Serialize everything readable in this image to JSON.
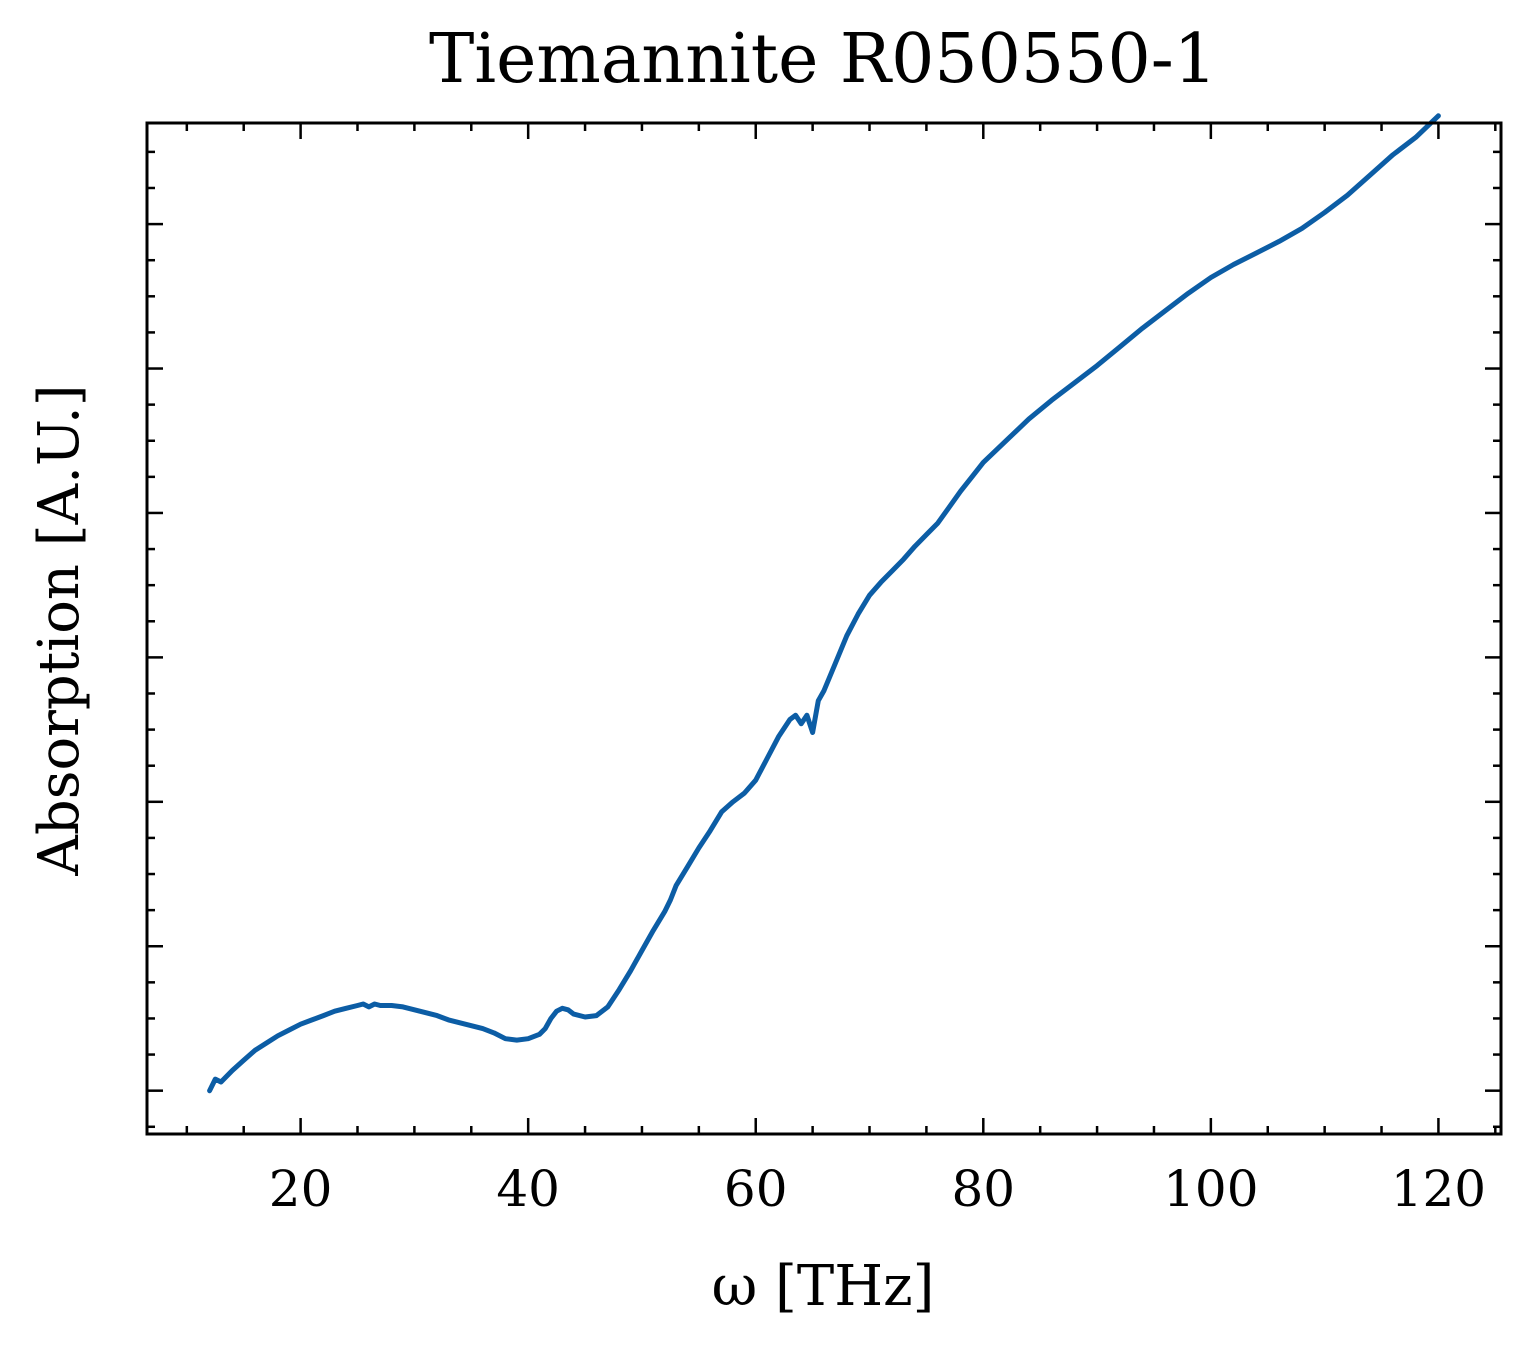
{
  "chart_data": {
    "type": "line",
    "title": "Tiemannite R050550-1",
    "xlabel": "ω [THz]",
    "ylabel": "Absorption [A.U.]",
    "xlim": [
      6.5,
      125.5
    ],
    "ylim": [
      -0.03,
      0.67
    ],
    "x_ticks": [
      20,
      40,
      60,
      80,
      100,
      120
    ],
    "x_tick_labels": [
      "20",
      "40",
      "60",
      "80",
      "100",
      "120"
    ],
    "x_minor_step": 5,
    "y_ticks": [
      0.0,
      0.1,
      0.2,
      0.3,
      0.4,
      0.5,
      0.6
    ],
    "y_tick_labels": [
      "",
      "",
      "",
      "",
      "",
      "",
      ""
    ],
    "y_minor_step": 0.025,
    "grid": false,
    "legend": "none",
    "series": [
      {
        "color": "#0c5da5",
        "x": [
          12.0,
          12.5,
          13.0,
          14.0,
          15.0,
          16.0,
          17.0,
          18.0,
          19.0,
          20.0,
          21.0,
          22.0,
          23.0,
          24.0,
          25.0,
          25.5,
          26.0,
          26.5,
          27.0,
          28.0,
          29.0,
          30.0,
          31.0,
          32.0,
          33.0,
          34.0,
          35.0,
          36.0,
          37.0,
          38.0,
          39.0,
          40.0,
          41.0,
          41.5,
          42.0,
          42.5,
          43.0,
          43.5,
          44.0,
          45.0,
          46.0,
          47.0,
          48.0,
          49.0,
          50.0,
          51.0,
          52.0,
          52.5,
          53.0,
          54.0,
          55.0,
          56.0,
          57.0,
          58.0,
          59.0,
          60.0,
          61.0,
          62.0,
          63.0,
          63.5,
          64.0,
          64.5,
          65.0,
          65.5,
          66.0,
          67.0,
          68.0,
          69.0,
          70.0,
          71.0,
          72.0,
          73.0,
          74.0,
          75.0,
          76.0,
          77.0,
          78.0,
          79.0,
          80.0,
          82.0,
          84.0,
          86.0,
          88.0,
          90.0,
          92.0,
          94.0,
          96.0,
          98.0,
          100.0,
          102.0,
          104.0,
          106.0,
          108.0,
          110.0,
          112.0,
          114.0,
          116.0,
          118.0,
          120.0
        ],
        "y": [
          0.0,
          0.008,
          0.006,
          0.014,
          0.021,
          0.028,
          0.033,
          0.038,
          0.042,
          0.046,
          0.049,
          0.052,
          0.055,
          0.057,
          0.059,
          0.06,
          0.058,
          0.06,
          0.059,
          0.059,
          0.058,
          0.056,
          0.054,
          0.052,
          0.049,
          0.047,
          0.045,
          0.043,
          0.04,
          0.036,
          0.035,
          0.036,
          0.039,
          0.043,
          0.05,
          0.055,
          0.057,
          0.056,
          0.053,
          0.051,
          0.052,
          0.058,
          0.07,
          0.083,
          0.097,
          0.111,
          0.124,
          0.132,
          0.142,
          0.155,
          0.168,
          0.18,
          0.193,
          0.2,
          0.206,
          0.215,
          0.23,
          0.245,
          0.257,
          0.26,
          0.254,
          0.26,
          0.248,
          0.27,
          0.277,
          0.296,
          0.315,
          0.33,
          0.343,
          0.352,
          0.36,
          0.368,
          0.377,
          0.385,
          0.393,
          0.404,
          0.415,
          0.425,
          0.435,
          0.45,
          0.465,
          0.478,
          0.49,
          0.502,
          0.515,
          0.528,
          0.54,
          0.552,
          0.563,
          0.572,
          0.58,
          0.588,
          0.597,
          0.608,
          0.62,
          0.634,
          0.648,
          0.66,
          0.675
        ]
      }
    ]
  }
}
